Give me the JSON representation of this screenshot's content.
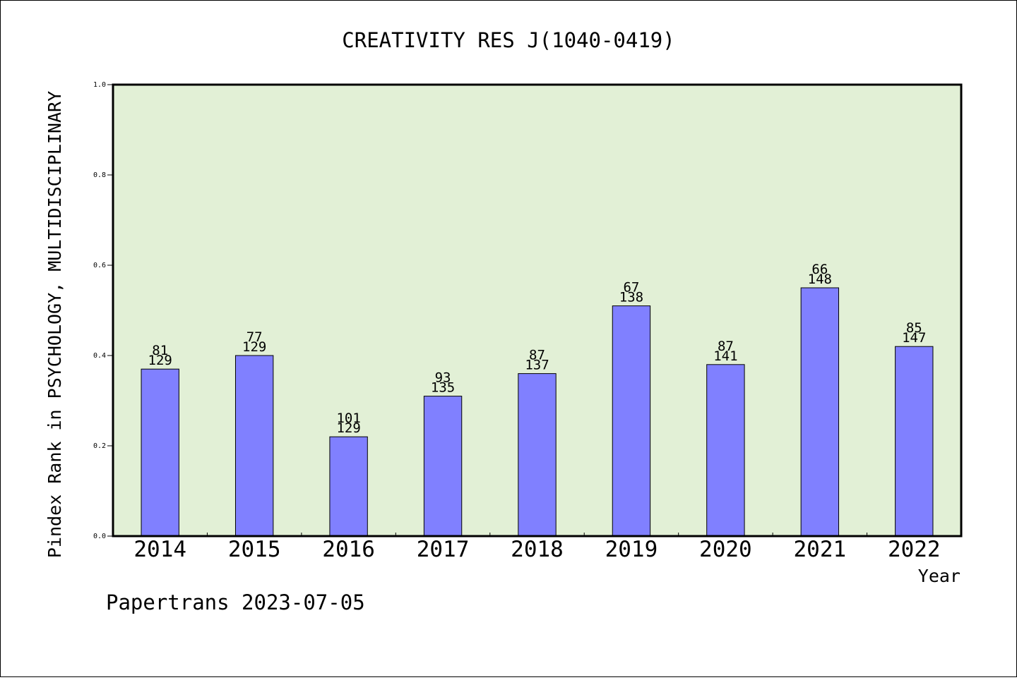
{
  "chart_data": {
    "type": "bar",
    "title": "CREATIVITY RES J(1040-0419)",
    "xlabel": "Year",
    "ylabel": "Pindex Rank in PSYCHOLOGY, MULTIDISCIPLINARY",
    "categories": [
      "2014",
      "2015",
      "2016",
      "2017",
      "2018",
      "2019",
      "2020",
      "2021",
      "2022"
    ],
    "values": [
      0.37,
      0.4,
      0.22,
      0.31,
      0.36,
      0.51,
      0.38,
      0.55,
      0.42
    ],
    "rank_labels": [
      "81",
      "77",
      "101",
      "93",
      "87",
      "67",
      "87",
      "66",
      "85"
    ],
    "total_labels": [
      "129",
      "129",
      "129",
      "135",
      "137",
      "138",
      "141",
      "148",
      "147"
    ],
    "ylim": [
      0,
      1.0
    ],
    "yticks": [
      "0.0",
      "0.2",
      "0.4",
      "0.6",
      "0.8",
      "1.0"
    ],
    "grid": false,
    "legend": "none"
  },
  "footer": {
    "watermark": "Papertrans 2023-07-05"
  },
  "colors": {
    "plot_background": "#e2f0d6",
    "bar_fill": "#8080ff",
    "axis": "#000000"
  }
}
